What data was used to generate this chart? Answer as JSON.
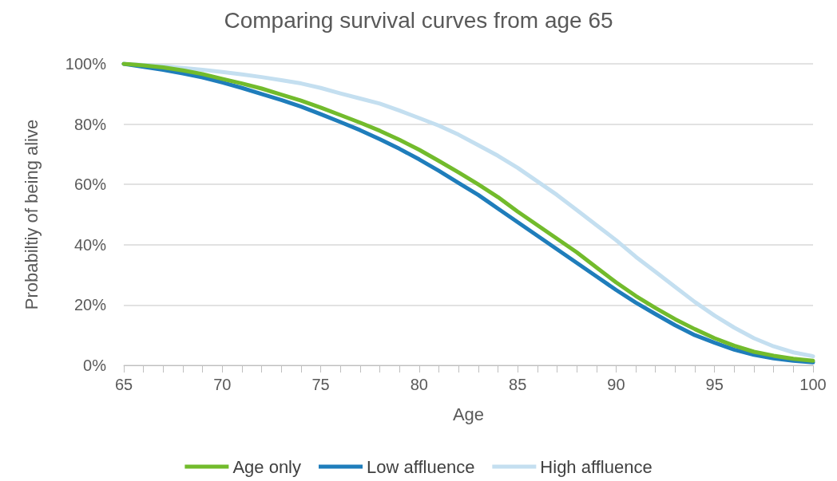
{
  "chart_data": {
    "type": "line",
    "title": "Comparing survival curves from age 65",
    "xlabel": "Age",
    "ylabel": "Probabiltiy of being alive",
    "x": [
      65,
      66,
      67,
      68,
      69,
      70,
      71,
      72,
      73,
      74,
      75,
      76,
      77,
      78,
      79,
      80,
      81,
      82,
      83,
      84,
      85,
      86,
      87,
      88,
      89,
      90,
      91,
      92,
      93,
      94,
      95,
      96,
      97,
      98,
      99,
      100
    ],
    "series": [
      {
        "name": "Age only",
        "color": "#72bb2c",
        "values": [
          100,
          99.5,
          98.8,
          97.8,
          96.6,
          95,
          93.5,
          91.8,
          89.8,
          87.8,
          85.5,
          83,
          80.5,
          77.8,
          74.8,
          71.5,
          67.8,
          64,
          60,
          55.8,
          51,
          46.5,
          42,
          37.5,
          32.5,
          27.5,
          23,
          19,
          15.3,
          12,
          9,
          6.5,
          4.5,
          3.2,
          2.2,
          1.5
        ]
      },
      {
        "name": "Low affluence",
        "color": "#1f7dbb",
        "values": [
          100,
          99,
          98,
          96.8,
          95.5,
          93.8,
          92,
          90,
          88,
          85.8,
          83.3,
          80.7,
          78,
          75,
          71.8,
          68.3,
          64.5,
          60.5,
          56.5,
          52,
          47.5,
          43,
          38.5,
          34,
          29.5,
          25,
          20.8,
          17,
          13.3,
          10,
          7.5,
          5.2,
          3.5,
          2.3,
          1.5,
          1
        ]
      },
      {
        "name": "High affluence",
        "color": "#c4dff0",
        "values": [
          100,
          99.6,
          99.2,
          98.6,
          98,
          97.3,
          96.5,
          95.6,
          94.6,
          93.5,
          92,
          90.2,
          88.5,
          86.8,
          84.5,
          82,
          79.5,
          76.5,
          73,
          69.5,
          65.5,
          61,
          56.5,
          51.5,
          46.5,
          41.5,
          36,
          31,
          26,
          21,
          16.5,
          12.5,
          9,
          6.3,
          4.3,
          3
        ]
      }
    ],
    "xlim": [
      65,
      100
    ],
    "xticks": [
      65,
      {
        "value": 66,
        "label": null
      },
      {
        "value": 67,
        "label": null
      },
      {
        "value": 68,
        "label": null
      },
      {
        "value": 69,
        "label": null
      },
      70,
      {
        "value": 71,
        "label": null
      },
      {
        "value": 72,
        "label": null
      },
      {
        "value": 73,
        "label": null
      },
      {
        "value": 74,
        "label": null
      },
      75,
      {
        "value": 76,
        "label": null
      },
      {
        "value": 77,
        "label": null
      },
      {
        "value": 78,
        "label": null
      },
      {
        "value": 79,
        "label": null
      },
      80,
      {
        "value": 81,
        "label": null
      },
      {
        "value": 82,
        "label": null
      },
      {
        "value": 83,
        "label": null
      },
      {
        "value": 84,
        "label": null
      },
      85,
      {
        "value": 86,
        "label": null
      },
      {
        "value": 87,
        "label": null
      },
      {
        "value": 88,
        "label": null
      },
      {
        "value": 89,
        "label": null
      },
      90,
      {
        "value": 91,
        "label": null
      },
      {
        "value": 92,
        "label": null
      },
      {
        "value": 93,
        "label": null
      },
      {
        "value": 94,
        "label": null
      },
      95,
      {
        "value": 96,
        "label": null
      },
      {
        "value": 97,
        "label": null
      },
      {
        "value": 98,
        "label": null
      },
      {
        "value": 99,
        "label": null
      },
      100
    ],
    "ylim": [
      0,
      100
    ],
    "yticks": [
      {
        "value": 0,
        "label": "0%"
      },
      {
        "value": 20,
        "label": "20%"
      },
      {
        "value": 40,
        "label": "40%"
      },
      {
        "value": 60,
        "label": "60%"
      },
      {
        "value": 80,
        "label": "80%"
      },
      {
        "value": 100,
        "label": "100%"
      }
    ],
    "grid": "y",
    "legend": "bottom",
    "marker": "none",
    "line_style": "solid"
  }
}
